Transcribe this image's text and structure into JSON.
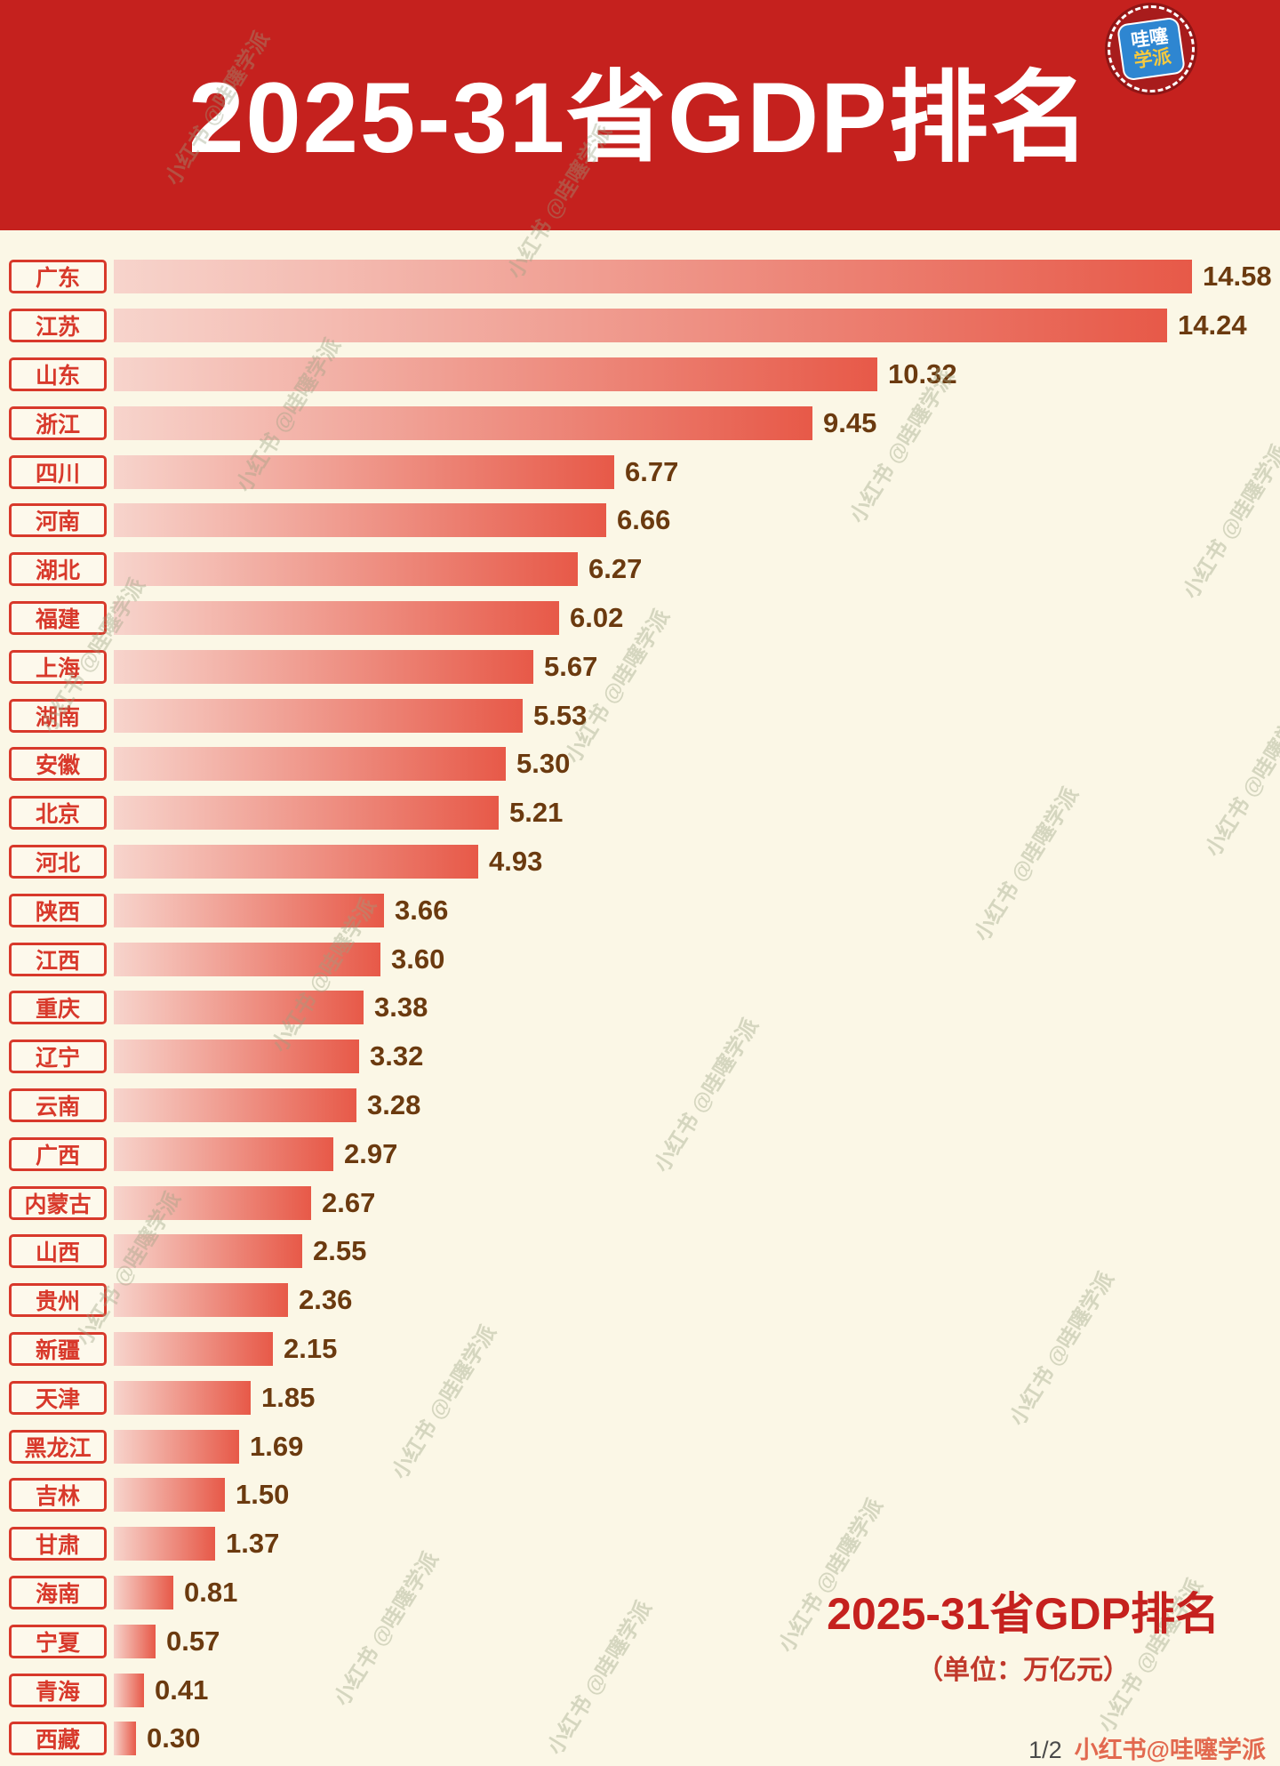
{
  "header": {
    "title": "2025-31省GDP排名"
  },
  "logo": {
    "line1": "哇噻",
    "line2": "学派"
  },
  "chart_data": {
    "type": "bar",
    "orientation": "horizontal",
    "title": "2025-31省GDP排名",
    "unit_label": "（单位：万亿元）",
    "xlim": [
      0,
      14.58
    ],
    "categories": [
      "广东",
      "江苏",
      "山东",
      "浙江",
      "四川",
      "河南",
      "湖北",
      "福建",
      "上海",
      "湖南",
      "安徽",
      "北京",
      "河北",
      "陕西",
      "江西",
      "重庆",
      "辽宁",
      "云南",
      "广西",
      "内蒙古",
      "山西",
      "贵州",
      "新疆",
      "天津",
      "黑龙江",
      "吉林",
      "甘肃",
      "海南",
      "宁夏",
      "青海",
      "西藏"
    ],
    "values": [
      14.58,
      14.24,
      10.32,
      9.45,
      6.77,
      6.66,
      6.27,
      6.02,
      5.67,
      5.53,
      5.3,
      5.21,
      4.93,
      3.66,
      3.6,
      3.38,
      3.32,
      3.28,
      2.97,
      2.67,
      2.55,
      2.36,
      2.15,
      1.85,
      1.69,
      1.5,
      1.37,
      0.81,
      0.57,
      0.41,
      0.3
    ],
    "legend": null,
    "grid": false
  },
  "footer": {
    "page": "1/2",
    "credit": "小红书@哇噻学派"
  },
  "watermark": {
    "text": "小红书 @哇噻学派"
  },
  "colors": {
    "background": "#fbf7e6",
    "header_bg": "#c5211e",
    "label_red": "#d8392b",
    "label_bg": "#fdf9ec",
    "bar_start": "#f7d4cc",
    "bar_end": "#e75948",
    "value_brown": "#6b3a0f"
  }
}
